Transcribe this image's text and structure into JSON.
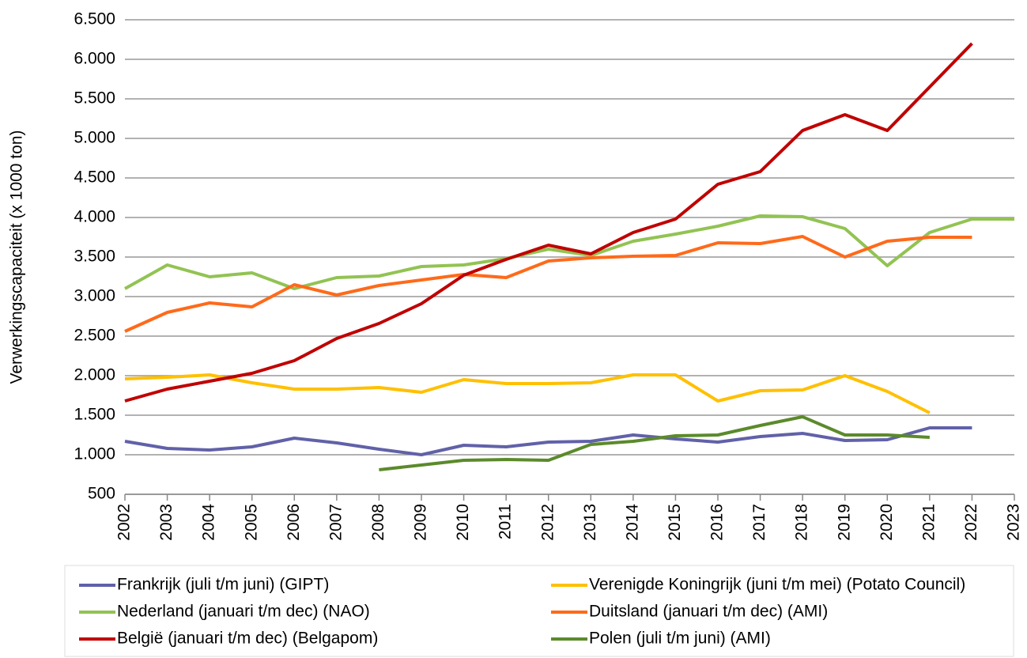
{
  "chart_data": {
    "type": "line",
    "y_label": "Verwerkingscapaciteit (x 1000 ton)",
    "x": [
      2002,
      2003,
      2004,
      2005,
      2006,
      2007,
      2008,
      2009,
      2010,
      2011,
      2012,
      2013,
      2014,
      2015,
      2016,
      2017,
      2018,
      2019,
      2020,
      2021,
      2022,
      2023
    ],
    "xlim": [
      2002,
      2023
    ],
    "xticks": [
      2002,
      2003,
      2004,
      2005,
      2006,
      2007,
      2008,
      2009,
      2010,
      2011,
      2012,
      2013,
      2014,
      2015,
      2016,
      2017,
      2018,
      2019,
      2020,
      2021,
      2022,
      2023
    ],
    "ylim": [
      500,
      6500
    ],
    "yticks": [
      500,
      {
        "value": 1000,
        "label": "1.000"
      },
      {
        "value": 1500,
        "label": "1.500"
      },
      {
        "value": 2000,
        "label": "2.000"
      },
      {
        "value": 2500,
        "label": "2.500"
      },
      {
        "value": 3000,
        "label": "3.000"
      },
      {
        "value": 3500,
        "label": "3.500"
      },
      {
        "value": 4000,
        "label": "4.000"
      },
      {
        "value": 4500,
        "label": "4.500"
      },
      {
        "value": 5000,
        "label": "5.000"
      },
      {
        "value": 5500,
        "label": "5.500"
      },
      {
        "value": 6000,
        "label": "6.000"
      },
      {
        "value": 6500,
        "label": "6.500"
      }
    ],
    "grid": true,
    "series": [
      {
        "name": "Frankrijk (juli t/m juni) (GIPT)",
        "color": "#6161a9",
        "values": [
          1170,
          1080,
          1060,
          1100,
          1210,
          1150,
          1070,
          1000,
          1120,
          1100,
          1160,
          1170,
          1250,
          1200,
          1160,
          1230,
          1270,
          1180,
          1190,
          1340,
          1340,
          null
        ]
      },
      {
        "name": "Verenigde Koningrijk (juni t/m mei) (Potato Council)",
        "color": "#ffc000",
        "values": [
          1960,
          1980,
          2010,
          1910,
          1830,
          1830,
          1850,
          1790,
          1950,
          1900,
          1900,
          1910,
          2010,
          2010,
          1680,
          1810,
          1820,
          2000,
          1800,
          1530,
          null,
          null
        ]
      },
      {
        "name": "Nederland (januari t/m dec) (NAO)",
        "color": "#92c353",
        "values": [
          3100,
          3400,
          3250,
          3300,
          3100,
          3240,
          3260,
          3380,
          3400,
          3480,
          3600,
          3520,
          3700,
          3790,
          3890,
          4020,
          4010,
          3860,
          3390,
          3810,
          3980,
          3980
        ]
      },
      {
        "name": "Duitsland (januari t/m dec) (AMI)",
        "color": "#ff6a1a",
        "values": [
          2560,
          2800,
          2920,
          2870,
          3150,
          3020,
          3140,
          3210,
          3280,
          3240,
          3450,
          3490,
          3510,
          3520,
          3680,
          3670,
          3760,
          3500,
          3700,
          3750,
          3750,
          null
        ]
      },
      {
        "name": "België (januari t/m dec) (Belgapom)",
        "color": "#c00000",
        "values": [
          1680,
          1830,
          1930,
          2030,
          2190,
          2470,
          2660,
          2910,
          3270,
          3470,
          3650,
          3540,
          3810,
          3980,
          4420,
          4580,
          5100,
          5300,
          5100,
          5650,
          6200,
          null
        ]
      },
      {
        "name": "Polen (juli t/m juni) (AMI)",
        "color": "#5b8a2b",
        "values": [
          null,
          null,
          null,
          null,
          null,
          null,
          810,
          870,
          930,
          940,
          930,
          1130,
          1170,
          1240,
          1250,
          1370,
          1480,
          1250,
          1250,
          1220,
          null,
          null
        ]
      }
    ]
  }
}
